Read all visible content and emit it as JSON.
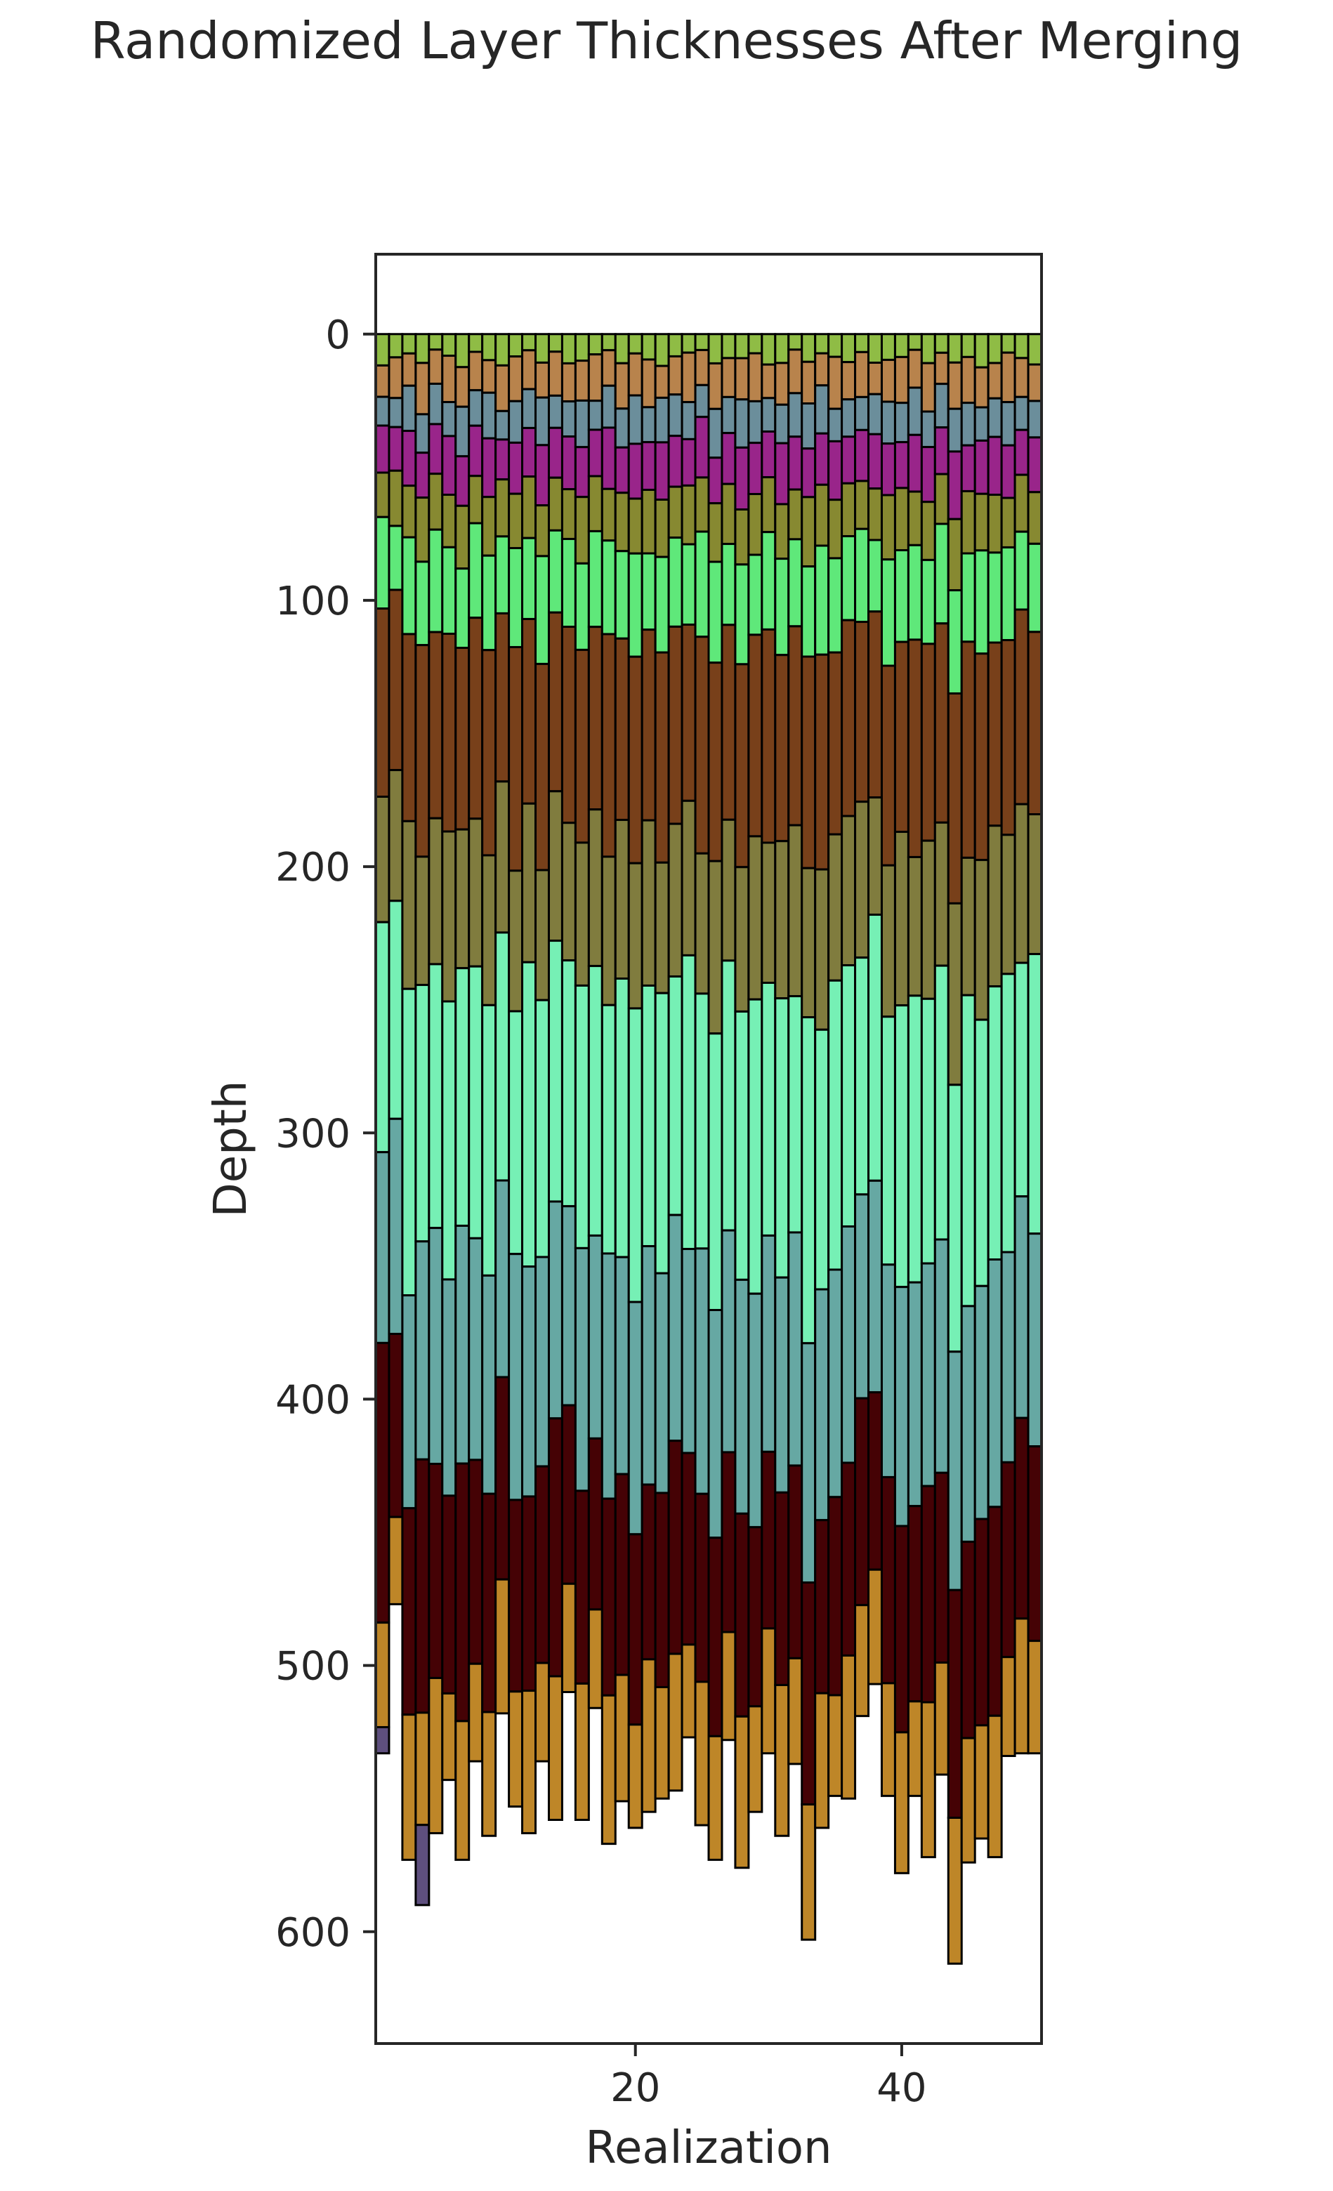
{
  "chart_data": {
    "type": "bar",
    "title": "Randomized Layer Thicknesses After Merging",
    "xlabel": "Realization",
    "ylabel": "Depth",
    "xlim": [
      0.5,
      50.5
    ],
    "ylim": [
      642,
      -30
    ],
    "y_inverted": true,
    "xticks": [
      20,
      40
    ],
    "yticks": [
      0,
      100,
      200,
      300,
      400,
      500,
      600
    ],
    "grid": false,
    "legend": "none",
    "stack_order": [
      "L1",
      "L2",
      "L3",
      "L4",
      "L5",
      "L6",
      "L7",
      "L8",
      "L9",
      "L10",
      "L11",
      "L12",
      "L13"
    ],
    "layer_colors": {
      "L1": "#8fbc45",
      "L2": "#b8834c",
      "L3": "#6b8e9b",
      "L4": "#99258a",
      "L5": "#878931",
      "L6": "#5fe87a",
      "L7": "#78401a",
      "L8": "#807c3e",
      "L9": "#76f0b5",
      "L10": "#66a8a3",
      "L11": "#450205",
      "L12": "#be8628",
      "L13": "#5e4f7e"
    },
    "x": [
      1,
      2,
      3,
      4,
      5,
      6,
      7,
      8,
      9,
      10,
      11,
      12,
      13,
      14,
      15,
      16,
      17,
      18,
      19,
      20,
      21,
      22,
      23,
      24,
      25,
      26,
      27,
      28,
      29,
      30,
      31,
      32,
      33,
      34,
      35,
      36,
      37,
      38,
      39,
      40,
      41,
      42,
      43,
      44,
      45,
      46,
      47,
      48,
      49,
      50
    ],
    "total_depth": [
      533,
      477,
      573,
      590,
      563,
      543,
      573,
      536,
      564,
      518,
      553,
      563,
      536,
      558,
      510,
      558,
      516,
      567,
      551,
      561,
      555,
      550,
      547,
      527,
      560,
      573,
      528,
      576,
      555,
      533,
      564,
      537,
      603,
      561,
      549,
      550,
      519,
      507,
      549,
      578,
      549,
      572,
      541,
      612,
      574,
      565,
      572,
      534,
      533,
      533
    ],
    "series": [
      {
        "layer": "L1",
        "values": [
          12,
          8,
          6,
          9,
          5,
          7,
          10,
          6,
          8,
          11,
          7,
          5,
          9,
          6,
          10,
          8,
          7,
          5,
          9,
          6,
          8,
          10,
          7,
          6,
          5,
          9,
          8,
          7,
          6,
          10,
          9,
          5,
          8,
          6,
          7,
          9,
          6,
          10,
          8,
          7,
          5,
          9,
          6,
          8,
          7,
          10,
          9,
          6,
          8,
          10
        ]
      },
      {
        "layer": "L2",
        "values": [
          12,
          14,
          10,
          16,
          11,
          15,
          12,
          13,
          10,
          16,
          14,
          12,
          11,
          15,
          13,
          12,
          16,
          11,
          14,
          13,
          15,
          10,
          12,
          16,
          11,
          14,
          13,
          12,
          15,
          11,
          13,
          14,
          12,
          10,
          16,
          12,
          15,
          11,
          13,
          14,
          12,
          15,
          10,
          13,
          14,
          12,
          11,
          16,
          13,
          12
        ]
      },
      {
        "layer": "L3",
        "values": [
          11,
          10,
          14,
          12,
          13,
          11,
          15,
          12,
          14,
          10,
          13,
          12,
          15,
          11,
          12,
          14,
          10,
          13,
          12,
          15,
          11,
          14,
          13,
          12,
          10,
          15,
          12,
          14,
          13,
          11,
          12,
          14,
          13,
          15,
          10,
          12,
          11,
          14,
          13,
          12,
          15,
          11,
          14,
          12,
          13,
          10,
          12,
          14,
          11,
          12
        ]
      },
      {
        "layer": "L4",
        "values": [
          18,
          15,
          17,
          14,
          16,
          19,
          15,
          17,
          18,
          14,
          16,
          15,
          19,
          17,
          18,
          15,
          16,
          19,
          14,
          17,
          15,
          18,
          16,
          15,
          19,
          14,
          17,
          18,
          16,
          15,
          19,
          17,
          14,
          16,
          18,
          15,
          17,
          19,
          16,
          14,
          18,
          17,
          15,
          19,
          14,
          16,
          18,
          17,
          15,
          18
        ]
      },
      {
        "layer": "L5",
        "values": [
          17,
          19,
          16,
          20,
          18,
          17,
          19,
          16,
          18,
          20,
          17,
          19,
          16,
          18,
          17,
          20,
          19,
          16,
          18,
          17,
          20,
          18,
          16,
          19,
          17,
          18,
          20,
          16,
          19,
          18,
          17,
          16,
          20,
          19,
          18,
          17,
          16,
          18,
          20,
          19,
          17,
          18,
          16,
          20,
          19,
          17,
          18,
          16,
          19,
          17
        ]
      },
      {
        "layer": "L6",
        "values": [
          35,
          22,
          30,
          26,
          33,
          28,
          24,
          32,
          29,
          27,
          31,
          25,
          34,
          28,
          30,
          26,
          33,
          29,
          27,
          32,
          24,
          30,
          28,
          26,
          33,
          31,
          27,
          29,
          25,
          32,
          30,
          28,
          26,
          34,
          29,
          27,
          31,
          25,
          33,
          28,
          30,
          26,
          32,
          29,
          27,
          31,
          28,
          30,
          26,
          29
        ]
      },
      {
        "layer": "L7",
        "values": [
          72,
          62,
          58,
          66,
          60,
          64,
          55,
          68,
          63,
          59,
          70,
          57,
          65,
          61,
          67,
          58,
          63,
          69,
          56,
          64,
          60,
          66,
          62,
          57,
          68,
          61,
          65,
          59,
          63,
          70,
          58,
          64,
          61,
          67,
          56,
          63,
          60,
          65,
          62,
          58,
          69,
          61,
          64,
          59,
          66,
          62,
          57,
          63,
          65,
          60
        ]
      },
      {
        "layer": "L8",
        "values": [
          48,
          45,
          52,
          40,
          47,
          55,
          42,
          50,
          46,
          53,
          44,
          49,
          41,
          51,
          47,
          43,
          54,
          46,
          49,
          45,
          52,
          41,
          48,
          50,
          44,
          53,
          47,
          42,
          51,
          46,
          49,
          55,
          43,
          50,
          45,
          48,
          52,
          41,
          47,
          53,
          44,
          49,
          46,
          51,
          42,
          48,
          50,
          45,
          53,
          46
        ]
      },
      {
        "layer": "L9",
        "values": [
          88,
          75,
          95,
          80,
          85,
          90,
          78,
          92,
          83,
          87,
          76,
          94,
          81,
          89,
          84,
          79,
          93,
          77,
          86,
          91,
          82,
          88,
          75,
          95,
          80,
          85,
          90,
          78,
          92,
          83,
          87,
          76,
          94,
          81,
          89,
          84,
          79,
          93,
          77,
          86,
          91,
          82,
          88,
          75,
          95,
          80,
          85,
          90,
          78,
          92
        ]
      },
      {
        "layer": "L10",
        "values": [
          73,
          74,
          66,
          68,
          76,
          70,
          72,
          75,
          67,
          69,
          77,
          71,
          66,
          74,
          68,
          73,
          70,
          76,
          67,
          72,
          75,
          69,
          71,
          66,
          77,
          70,
          74,
          68,
          73,
          71,
          67,
          75,
          69,
          72,
          70,
          76,
          68,
          74,
          66,
          73,
          71,
          69,
          75,
          67,
          72,
          70,
          77,
          68,
          74,
          70
        ]
      },
      {
        "layer": "L11",
        "values": [
          107,
          63,
          64,
          79,
          69,
          64,
          78,
          69,
          67,
          71,
          60,
          60,
          62,
          88,
          61,
          58,
          59,
          61,
          62,
          59,
          55,
          61,
          67,
          62,
          59,
          61,
          60,
          59,
          56,
          58,
          60,
          62,
          64,
          54,
          61,
          62,
          69,
          62,
          64,
          63,
          62,
          67,
          61,
          64,
          60,
          62,
          65,
          63,
          67,
          64
        ]
      },
      {
        "layer": "L12",
        "values": [
          40,
          30,
          45,
          35,
          50,
          28,
          42,
          33,
          38,
          47,
          36,
          44,
          31,
          49,
          37,
          41,
          34,
          46,
          39,
          32,
          48,
          35,
          43,
          30,
          45,
          38,
          36,
          44,
          33,
          41,
          47,
          34,
          39,
          42,
          31,
          46,
          37,
          40,
          35,
          43,
          30,
          48,
          36,
          41,
          38,
          34,
          44,
          32,
          45,
          37
        ]
      },
      {
        "layer": "L13",
        "values": [
          10,
          0,
          0,
          25,
          0,
          0,
          0,
          0,
          0,
          0,
          0,
          0,
          0,
          0,
          0,
          0,
          0,
          0,
          0,
          0,
          0,
          0,
          0,
          0,
          0,
          0,
          0,
          0,
          0,
          0,
          0,
          0,
          0,
          0,
          0,
          0,
          0,
          0,
          0,
          0,
          0,
          0,
          0,
          0,
          0,
          0,
          0,
          0,
          0,
          0
        ]
      }
    ]
  }
}
